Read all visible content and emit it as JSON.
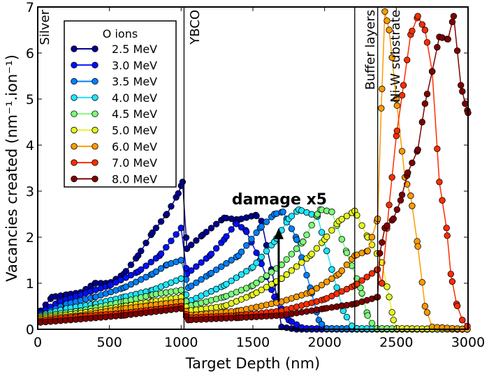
{
  "chart_data": {
    "type": "line",
    "xlabel": "Target Depth (nm)",
    "ylabel": "Vacancies created (nm⁻¹.ion⁻¹)",
    "xlim": [
      0,
      3000
    ],
    "ylim": [
      0,
      7
    ],
    "xticks": [
      "0",
      "500",
      "1000",
      "1500",
      "2000",
      "2500",
      "3000"
    ],
    "yticks": [
      "0",
      "1",
      "2",
      "3",
      "4",
      "5",
      "6",
      "7"
    ],
    "grid": false,
    "legend": {
      "title": "O ions",
      "placement": "top-left"
    },
    "layer_boundaries": [
      {
        "label": "Silver",
        "x": 0
      },
      {
        "label": "YBCO",
        "x": 1020
      },
      {
        "label": "Buffer layers",
        "x": 2210
      },
      {
        "label": "Ni-W substrate",
        "x": 2370
      }
    ],
    "annotation": {
      "text": "damage x5",
      "arrow_x": 1680,
      "arrow_from_y": 0.6,
      "arrow_to_y": 2.2
    },
    "series": [
      {
        "name": "2.5 MeV",
        "color": "#00008f",
        "points": [
          [
            20,
            0.4
          ],
          [
            100,
            0.7
          ],
          [
            200,
            0.75
          ],
          [
            300,
            0.8
          ],
          [
            400,
            1.0
          ],
          [
            500,
            1.0
          ],
          [
            600,
            1.2
          ],
          [
            700,
            1.6
          ],
          [
            800,
            2.1
          ],
          [
            900,
            2.5
          ],
          [
            980,
            2.95
          ],
          [
            1010,
            3.2
          ],
          [
            1040,
            1.75
          ],
          [
            1150,
            2.05
          ],
          [
            1300,
            2.42
          ],
          [
            1400,
            2.38
          ],
          [
            1520,
            2.48
          ],
          [
            1560,
            2.35
          ],
          [
            1650,
            1.0
          ],
          [
            1700,
            0.05
          ],
          [
            1800,
            0.0
          ],
          [
            3000,
            0.0
          ]
        ]
      },
      {
        "name": "3.0 MeV",
        "color": "#0010ff",
        "points": [
          [
            20,
            0.35
          ],
          [
            150,
            0.6
          ],
          [
            300,
            0.75
          ],
          [
            500,
            0.95
          ],
          [
            700,
            1.25
          ],
          [
            850,
            1.6
          ],
          [
            1000,
            2.2
          ],
          [
            1040,
            1.2
          ],
          [
            1200,
            1.6
          ],
          [
            1300,
            1.95
          ],
          [
            1380,
            2.3
          ],
          [
            1450,
            2.15
          ],
          [
            1550,
            1.5
          ],
          [
            1650,
            0.7
          ],
          [
            1750,
            0.2
          ],
          [
            1850,
            0.02
          ],
          [
            3000,
            0.0
          ]
        ]
      },
      {
        "name": "3.5 MeV",
        "color": "#0080ff",
        "points": [
          [
            20,
            0.3
          ],
          [
            200,
            0.55
          ],
          [
            400,
            0.7
          ],
          [
            600,
            0.9
          ],
          [
            800,
            1.2
          ],
          [
            900,
            1.4
          ],
          [
            1000,
            1.5
          ],
          [
            1050,
            0.9
          ],
          [
            1200,
            1.2
          ],
          [
            1400,
            1.6
          ],
          [
            1550,
            2.2
          ],
          [
            1650,
            2.5
          ],
          [
            1710,
            2.55
          ],
          [
            1800,
            2.0
          ],
          [
            1900,
            0.9
          ],
          [
            1960,
            0.2
          ],
          [
            2000,
            0.02
          ],
          [
            3000,
            0.0
          ]
        ]
      },
      {
        "name": "4.0 MeV",
        "color": "#1ee6ff",
        "points": [
          [
            20,
            0.3
          ],
          [
            200,
            0.45
          ],
          [
            400,
            0.55
          ],
          [
            600,
            0.7
          ],
          [
            800,
            0.85
          ],
          [
            1000,
            1.1
          ],
          [
            1050,
            0.6
          ],
          [
            1300,
            0.95
          ],
          [
            1500,
            1.35
          ],
          [
            1650,
            1.9
          ],
          [
            1750,
            2.4
          ],
          [
            1820,
            2.6
          ],
          [
            1950,
            2.45
          ],
          [
            2050,
            1.3
          ],
          [
            2130,
            0.4
          ],
          [
            2200,
            0.02
          ],
          [
            3000,
            0.0
          ]
        ]
      },
      {
        "name": "4.5 MeV",
        "color": "#7dff7a",
        "points": [
          [
            20,
            0.28
          ],
          [
            300,
            0.4
          ],
          [
            600,
            0.6
          ],
          [
            800,
            0.75
          ],
          [
            1000,
            0.85
          ],
          [
            1050,
            0.5
          ],
          [
            1300,
            0.7
          ],
          [
            1500,
            0.95
          ],
          [
            1700,
            1.4
          ],
          [
            1850,
            1.9
          ],
          [
            1950,
            2.5
          ],
          [
            1970,
            2.6
          ],
          [
            2050,
            2.55
          ],
          [
            2150,
            1.7
          ],
          [
            2250,
            0.9
          ],
          [
            2300,
            0.3
          ],
          [
            2350,
            0.02
          ],
          [
            3000,
            0.0
          ]
        ]
      },
      {
        "name": "5.0 MeV",
        "color": "#e6f51e",
        "points": [
          [
            20,
            0.25
          ],
          [
            300,
            0.35
          ],
          [
            600,
            0.5
          ],
          [
            800,
            0.6
          ],
          [
            1000,
            0.7
          ],
          [
            1050,
            0.4
          ],
          [
            1300,
            0.5
          ],
          [
            1500,
            0.75
          ],
          [
            1700,
            1.1
          ],
          [
            1900,
            1.6
          ],
          [
            2000,
            1.95
          ],
          [
            2100,
            2.35
          ],
          [
            2210,
            2.57
          ],
          [
            2300,
            2.0
          ],
          [
            2400,
            1.45
          ],
          [
            2450,
            0.7
          ],
          [
            2480,
            0.2
          ],
          [
            2500,
            0.02
          ],
          [
            3000,
            0.0
          ]
        ]
      },
      {
        "name": "6.0 MeV",
        "color": "#ff9b00",
        "points": [
          [
            20,
            0.22
          ],
          [
            300,
            0.3
          ],
          [
            600,
            0.45
          ],
          [
            1000,
            0.6
          ],
          [
            1050,
            0.3
          ],
          [
            1400,
            0.4
          ],
          [
            1700,
            0.6
          ],
          [
            1900,
            0.8
          ],
          [
            2100,
            1.2
          ],
          [
            2210,
            1.6
          ],
          [
            2300,
            1.7
          ],
          [
            2370,
            2.4
          ],
          [
            2395,
            4.8
          ],
          [
            2420,
            6.9
          ],
          [
            2450,
            6.5
          ],
          [
            2500,
            5.0
          ],
          [
            2560,
            3.3
          ],
          [
            2600,
            2.9
          ],
          [
            2650,
            1.8
          ],
          [
            2700,
            0.5
          ],
          [
            2750,
            0.05
          ],
          [
            3000,
            0.0
          ]
        ]
      },
      {
        "name": "7.0 MeV",
        "color": "#ff2d00",
        "points": [
          [
            20,
            0.18
          ],
          [
            300,
            0.28
          ],
          [
            600,
            0.35
          ],
          [
            1000,
            0.5
          ],
          [
            1050,
            0.25
          ],
          [
            1400,
            0.3
          ],
          [
            1700,
            0.4
          ],
          [
            2000,
            0.65
          ],
          [
            2210,
            0.95
          ],
          [
            2370,
            1.3
          ],
          [
            2380,
            0.05
          ],
          [
            2400,
            1.0
          ],
          [
            2450,
            2.7
          ],
          [
            2500,
            4.2
          ],
          [
            2550,
            5.3
          ],
          [
            2600,
            6.4
          ],
          [
            2650,
            6.8
          ],
          [
            2700,
            6.5
          ],
          [
            2750,
            5.6
          ],
          [
            2800,
            3.2
          ],
          [
            2850,
            2.2
          ],
          [
            2880,
            1.2
          ],
          [
            2920,
            0.55
          ],
          [
            2960,
            0.2
          ],
          [
            3000,
            0.05
          ]
        ]
      },
      {
        "name": "8.0 MeV",
        "color": "#800000",
        "points": [
          [
            20,
            0.15
          ],
          [
            300,
            0.22
          ],
          [
            600,
            0.3
          ],
          [
            1000,
            0.45
          ],
          [
            1050,
            0.2
          ],
          [
            1400,
            0.25
          ],
          [
            1700,
            0.3
          ],
          [
            2000,
            0.45
          ],
          [
            2210,
            0.55
          ],
          [
            2370,
            0.7
          ],
          [
            2385,
            1.65
          ],
          [
            2420,
            2.2
          ],
          [
            2480,
            2.4
          ],
          [
            2530,
            2.8
          ],
          [
            2580,
            3.4
          ],
          [
            2650,
            3.9
          ],
          [
            2700,
            4.9
          ],
          [
            2750,
            5.6
          ],
          [
            2800,
            6.35
          ],
          [
            2860,
            6.3
          ],
          [
            2900,
            6.8
          ],
          [
            2950,
            5.3
          ],
          [
            2980,
            4.9
          ],
          [
            3000,
            4.7
          ]
        ]
      }
    ]
  }
}
